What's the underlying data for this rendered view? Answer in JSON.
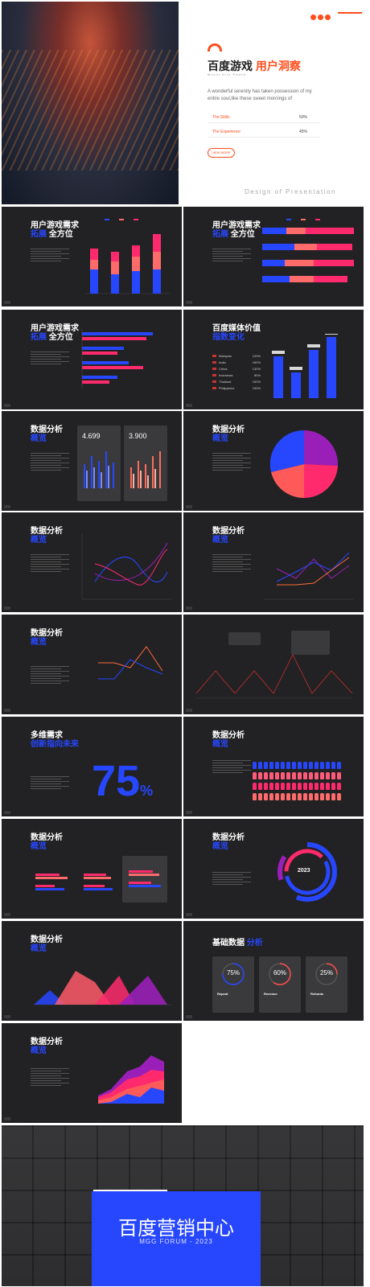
{
  "cover": {
    "title_a": "百度游戏",
    "title_b": "用户洞察",
    "tagline": "Mount Kiro Pasha",
    "desc": "A wonderful serenity has taken possession of my entire soul,like these sweet mornings of",
    "rows": [
      {
        "label": "The Skills",
        "value": "50%"
      },
      {
        "label": "The Experience",
        "value": "45%"
      }
    ],
    "button": "VIEW MORE",
    "footer": "Design of Presentation"
  },
  "slide_demand": {
    "title": "用户游戏需求",
    "sub_a": "拓展",
    "sub_b": "全方位"
  },
  "slide_media": {
    "title": "百度媒体价值",
    "sub": "指数变化",
    "countries": [
      {
        "name": "Malaysia",
        "value": "120%"
      },
      {
        "name": "India",
        "value": "160%"
      },
      {
        "name": "China",
        "value": "130%"
      },
      {
        "name": "Indonesia",
        "value": "80%"
      },
      {
        "name": "Thailand",
        "value": "150%"
      },
      {
        "name": "Philippines",
        "value": "190%"
      }
    ]
  },
  "slide_analysis": {
    "title": "数据分析",
    "sub": "概览"
  },
  "cards": {
    "left_value": "4.699",
    "right_value": "3.900"
  },
  "slide_multi": {
    "title": "多维需求",
    "sub": "创新指向未来",
    "big": "75",
    "unit": "%"
  },
  "slide_donut": {
    "year": "2023"
  },
  "slide_basic": {
    "title": "基础数据",
    "sub": "分析"
  },
  "gauges": [
    {
      "value": "75%",
      "name": "Repeat"
    },
    {
      "value": "60%",
      "name": "Revenue"
    },
    {
      "value": "25%",
      "name": "Refunds"
    }
  ],
  "end": {
    "title": "百度营销中心",
    "sub": "MGG FORUM - 2023"
  },
  "chart_data": {
    "type": "bar",
    "title": "百度媒体价值",
    "categories": [
      "Malaysia",
      "India",
      "China",
      "Indonesia",
      "Thailand",
      "Philippines"
    ],
    "values": [
      120,
      160,
      130,
      80,
      150,
      190
    ],
    "ylim": [
      0,
      200
    ]
  }
}
